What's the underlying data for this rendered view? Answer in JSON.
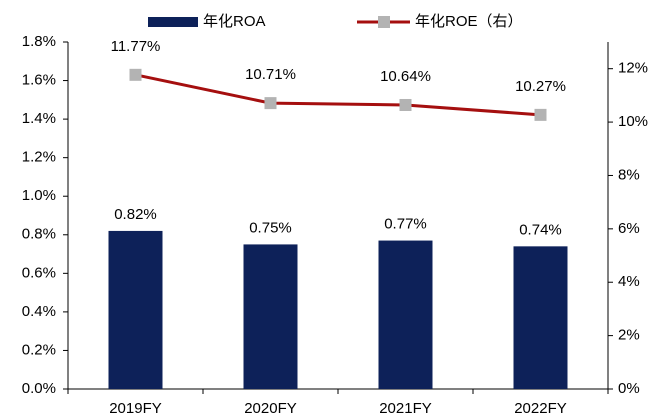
{
  "chart_data": {
    "type": "bar",
    "categories": [
      "2019FY",
      "2020FY",
      "2021FY",
      "2022FY"
    ],
    "series": [
      {
        "name": "年化ROA",
        "type": "bar",
        "color": "#0d2159",
        "values": [
          0.82,
          0.75,
          0.77,
          0.74
        ],
        "value_labels": [
          "0.82%",
          "0.75%",
          "0.77%",
          "0.74%"
        ]
      },
      {
        "name": "年化ROE（右）",
        "type": "line",
        "axis": "y2",
        "color": "#a50f0f",
        "marker_color": "#b3b3b3",
        "values": [
          11.77,
          10.71,
          10.64,
          10.27
        ],
        "value_labels": [
          "11.77%",
          "10.71%",
          "10.64%",
          "10.27%"
        ]
      }
    ],
    "ylim": [
      0,
      1.8
    ],
    "yticks": [
      {
        "value": 0,
        "label": "0.0%"
      },
      {
        "value": 0.2,
        "label": "0.2%"
      },
      {
        "value": 0.4,
        "label": "0.4%"
      },
      {
        "value": 0.6,
        "label": "0.6%"
      },
      {
        "value": 0.8,
        "label": "0.8%"
      },
      {
        "value": 1.0,
        "label": "1.0%"
      },
      {
        "value": 1.2,
        "label": "1.2%"
      },
      {
        "value": 1.4,
        "label": "1.4%"
      },
      {
        "value": 1.6,
        "label": "1.6%"
      },
      {
        "value": 1.8,
        "label": "1.8%"
      }
    ],
    "y2lim": [
      0,
      13
    ],
    "y2ticks": [
      {
        "value": 0,
        "label": "0%"
      },
      {
        "value": 2,
        "label": "2%"
      },
      {
        "value": 4,
        "label": "4%"
      },
      {
        "value": 6,
        "label": "6%"
      },
      {
        "value": 8,
        "label": "8%"
      },
      {
        "value": 10,
        "label": "10%"
      },
      {
        "value": 12,
        "label": "12%"
      }
    ],
    "grid": false,
    "legend": "top"
  }
}
